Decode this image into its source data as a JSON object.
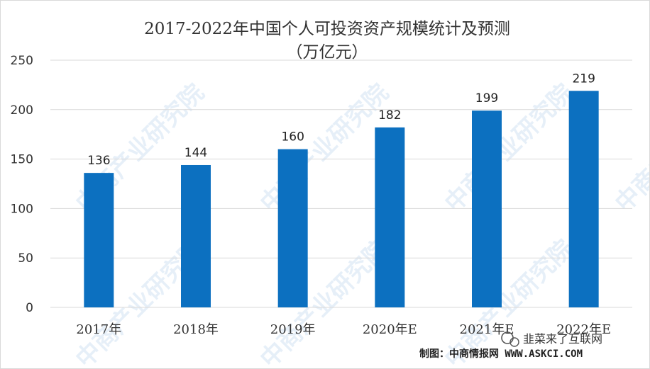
{
  "chart_data": {
    "type": "bar",
    "title": "2017-2022年中国个人可投资资产规模统计及预测",
    "subtitle": "（万亿元）",
    "categories": [
      "2017年",
      "2018年",
      "2019年",
      "2020年E",
      "2021年E",
      "2022年E"
    ],
    "values": [
      136,
      144,
      160,
      182,
      199,
      219
    ],
    "ylim": [
      0,
      250
    ],
    "yticks": [
      0,
      50,
      100,
      150,
      200,
      250
    ],
    "grid": true,
    "legend": "none",
    "bar_color": "#0c70c0"
  },
  "source": "制图：中商情报网 WWW.ASKCI.COM",
  "wechat_badge": "韭菜来了互联网",
  "watermark": "中商产业研究院"
}
